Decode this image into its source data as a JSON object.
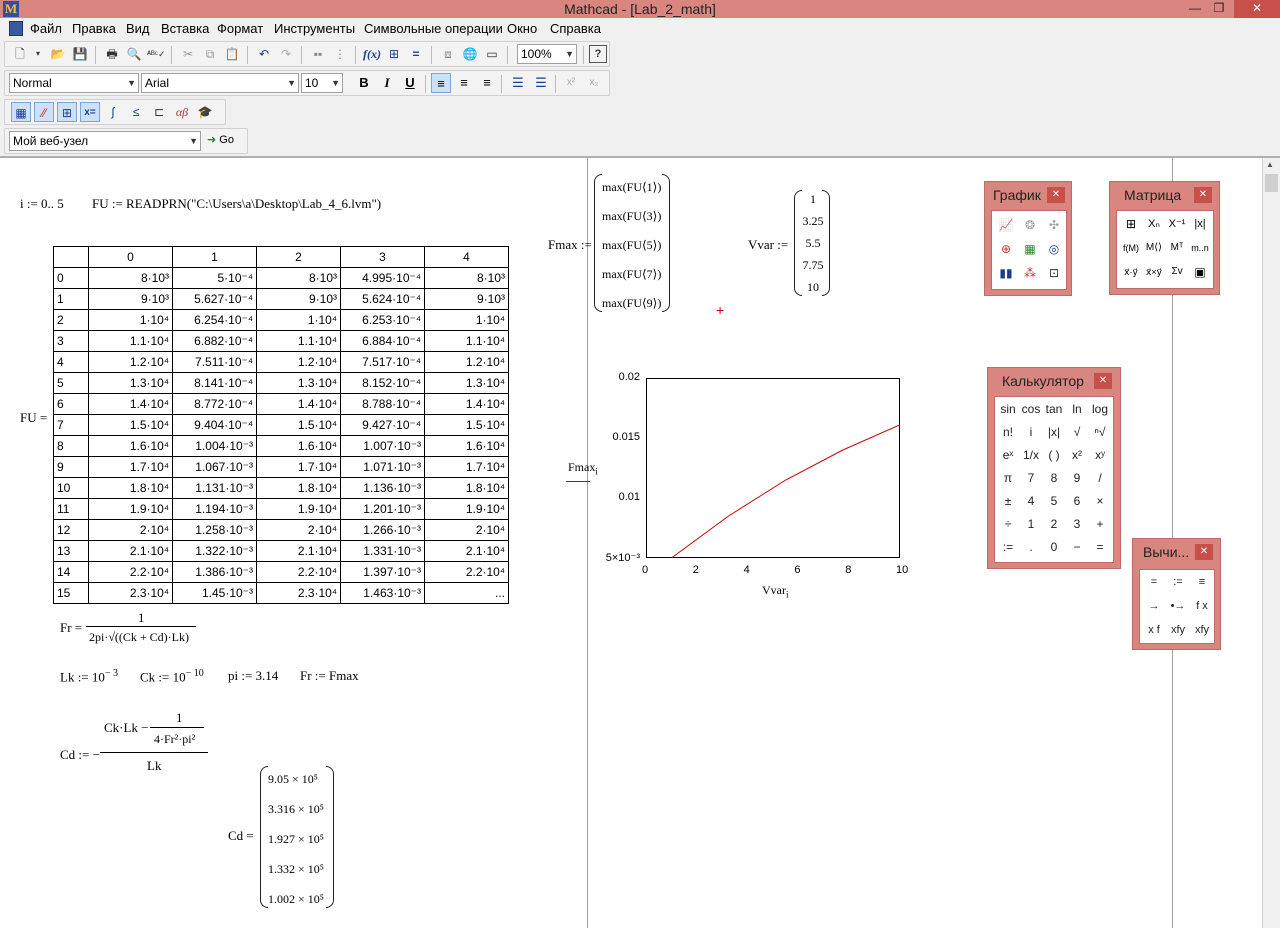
{
  "window": {
    "title": "Mathcad - [Lab_2_math]",
    "app_icon": "M"
  },
  "menu": [
    "Файл",
    "Правка",
    "Вид",
    "Вставка",
    "Формат",
    "Инструменты",
    "Символьные операции",
    "Окно",
    "Справка"
  ],
  "toolbar": {
    "zoom": "100%",
    "style": "Normal",
    "font": "Arial",
    "size": "10",
    "web_combo": "Мой веб-узел",
    "go_label": "Go",
    "bold": "B",
    "italic": "I",
    "underline": "U"
  },
  "worksheet": {
    "range_def": "i := 0.. 5",
    "read_def": "FU := READPRN(\"C:\\Users\\a\\Desktop\\Lab_4_6.lvm\")",
    "fu_label": "FU =",
    "fu_table": {
      "headers": [
        "0",
        "1",
        "2",
        "3",
        "4"
      ],
      "rows": [
        [
          "0",
          "8·10³",
          "5·10⁻⁴",
          "8·10³",
          "4.995·10⁻⁴",
          "8·10³"
        ],
        [
          "1",
          "9·10³",
          "5.627·10⁻⁴",
          "9·10³",
          "5.624·10⁻⁴",
          "9·10³"
        ],
        [
          "2",
          "1·10⁴",
          "6.254·10⁻⁴",
          "1·10⁴",
          "6.253·10⁻⁴",
          "1·10⁴"
        ],
        [
          "3",
          "1.1·10⁴",
          "6.882·10⁻⁴",
          "1.1·10⁴",
          "6.884·10⁻⁴",
          "1.1·10⁴"
        ],
        [
          "4",
          "1.2·10⁴",
          "7.511·10⁻⁴",
          "1.2·10⁴",
          "7.517·10⁻⁴",
          "1.2·10⁴"
        ],
        [
          "5",
          "1.3·10⁴",
          "8.141·10⁻⁴",
          "1.3·10⁴",
          "8.152·10⁻⁴",
          "1.3·10⁴"
        ],
        [
          "6",
          "1.4·10⁴",
          "8.772·10⁻⁴",
          "1.4·10⁴",
          "8.788·10⁻⁴",
          "1.4·10⁴"
        ],
        [
          "7",
          "1.5·10⁴",
          "9.404·10⁻⁴",
          "1.5·10⁴",
          "9.427·10⁻⁴",
          "1.5·10⁴"
        ],
        [
          "8",
          "1.6·10⁴",
          "1.004·10⁻³",
          "1.6·10⁴",
          "1.007·10⁻³",
          "1.6·10⁴"
        ],
        [
          "9",
          "1.7·10⁴",
          "1.067·10⁻³",
          "1.7·10⁴",
          "1.071·10⁻³",
          "1.7·10⁴"
        ],
        [
          "10",
          "1.8·10⁴",
          "1.131·10⁻³",
          "1.8·10⁴",
          "1.136·10⁻³",
          "1.8·10⁴"
        ],
        [
          "11",
          "1.9·10⁴",
          "1.194·10⁻³",
          "1.9·10⁴",
          "1.201·10⁻³",
          "1.9·10⁴"
        ],
        [
          "12",
          "2·10⁴",
          "1.258·10⁻³",
          "2·10⁴",
          "1.266·10⁻³",
          "2·10⁴"
        ],
        [
          "13",
          "2.1·10⁴",
          "1.322·10⁻³",
          "2.1·10⁴",
          "1.331·10⁻³",
          "2.1·10⁴"
        ],
        [
          "14",
          "2.2·10⁴",
          "1.386·10⁻³",
          "2.2·10⁴",
          "1.397·10⁻³",
          "2.2·10⁴"
        ],
        [
          "15",
          "2.3·10⁴",
          "1.45·10⁻³",
          "2.3·10⁴",
          "1.463·10⁻³",
          "..."
        ]
      ]
    },
    "fr_lhs": "Fr =",
    "fr_num": "1",
    "fr_den": "2pi·√((Ck + Cd)·Lk)",
    "lk_def": "Lk := 10",
    "lk_exp": "− 3",
    "ck_def": "Ck := 10",
    "ck_exp": "− 10",
    "pi_def": "pi := 3.14",
    "fr_def": "Fr := Fmax",
    "cd_def_lhs": "Cd := −",
    "cd_num_a": "Ck·Lk −",
    "cd_num_frac_num": "1",
    "cd_num_frac_den": "4·Fr²·pi²",
    "cd_den": "Lk",
    "cd_result_lhs": "Cd =",
    "cd_values": [
      "9.05 × 10⁵",
      "3.316 × 10⁵",
      "1.927 × 10⁵",
      "1.332 × 10⁵",
      "1.002 × 10⁵"
    ],
    "fmax_lhs": "Fmax :=",
    "fmax_entries": [
      "max(FU⟨1⟩)",
      "max(FU⟨3⟩)",
      "max(FU⟨5⟩)",
      "max(FU⟨7⟩)",
      "max(FU⟨9⟩)"
    ],
    "vvar_lhs": "Vvar :=",
    "vvar_values": [
      "1",
      "3.25",
      "5.5",
      "7.75",
      "10"
    ]
  },
  "chart_data": {
    "type": "line",
    "x": [
      1,
      3.25,
      5.5,
      7.75,
      10
    ],
    "series": [
      {
        "values": [
          0.005,
          0.0085,
          0.0115,
          0.014,
          0.0161
        ],
        "color": "#cc0000"
      }
    ],
    "xlabel": "Vvar",
    "xlabel_sub": "i",
    "ylabel": "Fmax",
    "ylabel_sub": "i",
    "xlim": [
      0,
      10
    ],
    "ylim": [
      0.005,
      0.02
    ],
    "xticks": [
      "0",
      "2",
      "4",
      "6",
      "8",
      "10"
    ],
    "yticks": [
      "5×10⁻³",
      "0.01",
      "0.015",
      "0.02"
    ]
  },
  "palettes": {
    "graph": {
      "title": "График"
    },
    "matrix": {
      "title": "Матрица"
    },
    "calc": {
      "title": "Калькулятор",
      "rows": [
        [
          "sin",
          "cos",
          "tan",
          "ln",
          "log"
        ],
        [
          "n!",
          "i",
          "|x|",
          "√",
          "ⁿ√"
        ],
        [
          "eˣ",
          "1/x",
          "( )",
          "x²",
          "xʸ"
        ],
        [
          "π",
          "7",
          "8",
          "9",
          "/"
        ],
        [
          "±",
          "4",
          "5",
          "6",
          "×"
        ],
        [
          "÷",
          "1",
          "2",
          "3",
          "+"
        ],
        [
          ":=",
          ".",
          "0",
          "−",
          "="
        ]
      ]
    },
    "eval": {
      "title": "Вычи...",
      "rows": [
        [
          "=",
          ":=",
          "≡"
        ],
        [
          "→",
          "•→",
          "f x"
        ],
        [
          "x f",
          "xfy",
          "xfy"
        ]
      ]
    }
  },
  "colors": {
    "title": "#d98680",
    "palette": "#d98680",
    "close": "#c7504a",
    "plot": "#cc0000"
  }
}
